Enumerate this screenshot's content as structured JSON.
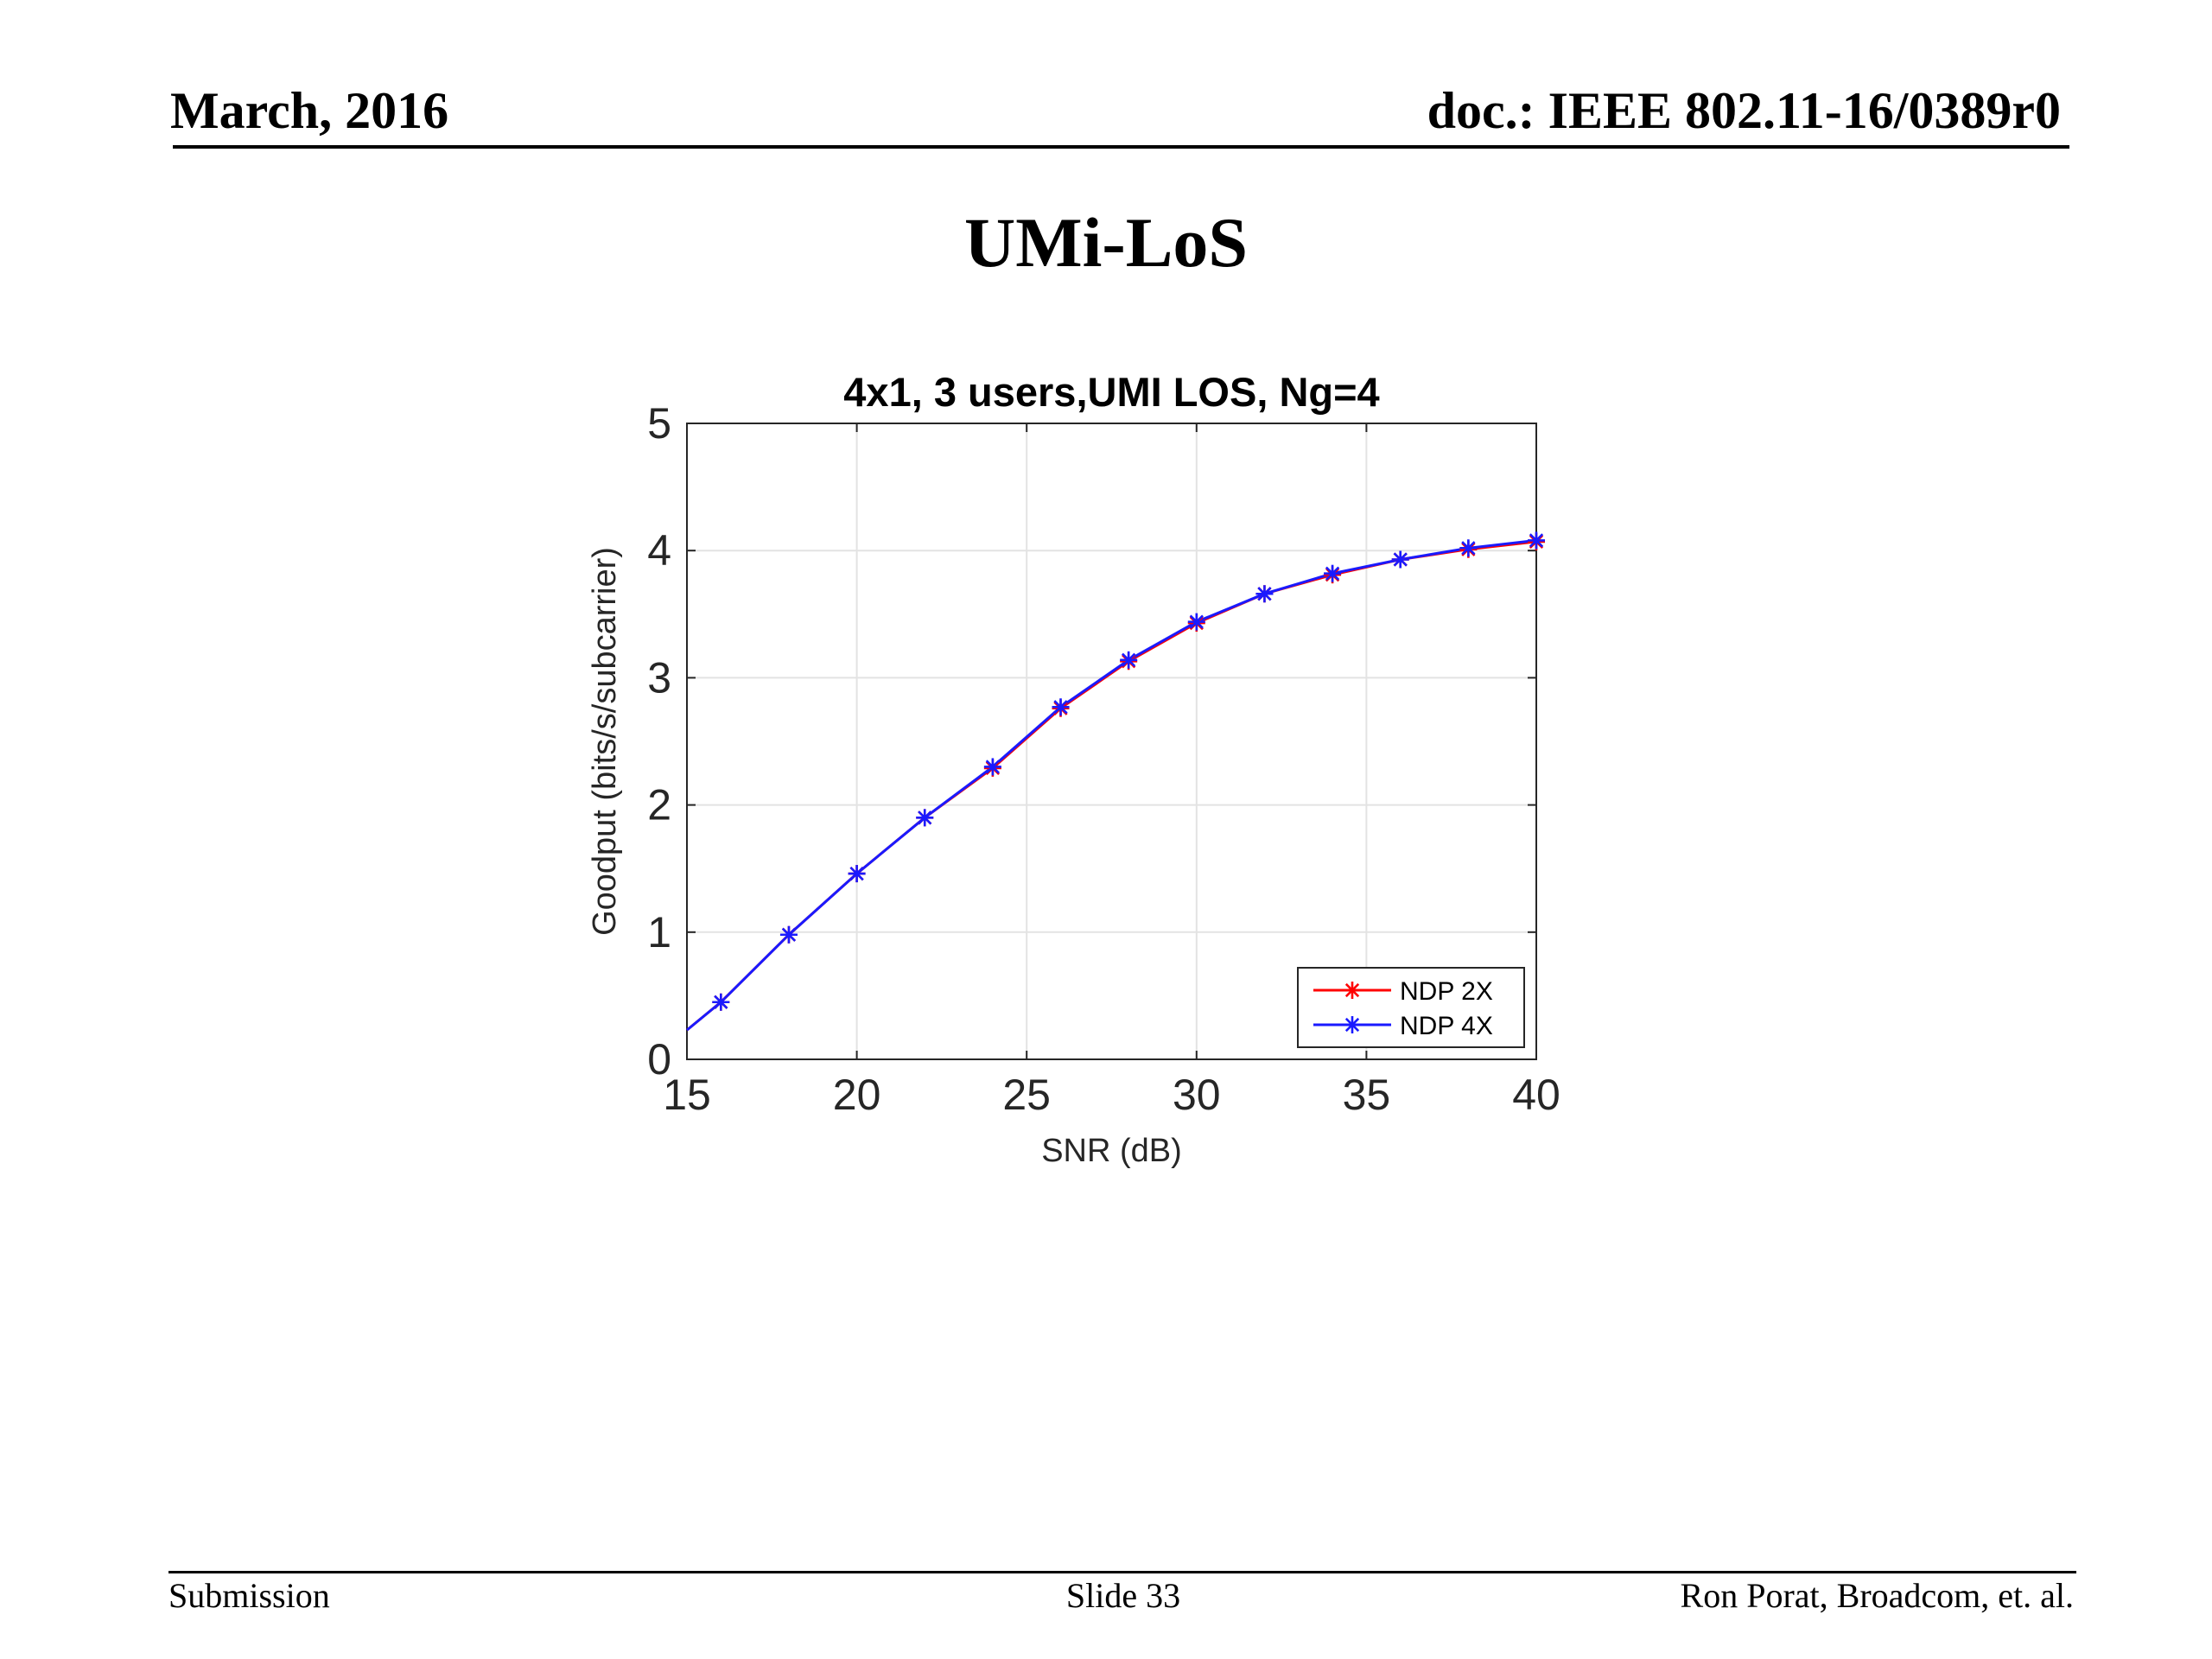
{
  "header": {
    "date": "March, 2016",
    "doc_id": "doc.: IEEE 802.11-16/0389r0"
  },
  "slide": {
    "title": "UMi-LoS"
  },
  "footer": {
    "left": "Submission",
    "center": "Slide 33",
    "right": "Ron Porat, Broadcom, et. al."
  },
  "chart_data": {
    "type": "line",
    "title": "4x1, 3 users,UMI LOS, Ng=4",
    "xlabel": "SNR (dB)",
    "ylabel": "Goodput (bits/s/subcarrier)",
    "xlim": [
      15,
      40
    ],
    "ylim": [
      0,
      5
    ],
    "xticks": [
      15,
      20,
      25,
      30,
      35,
      40
    ],
    "yticks": [
      0,
      1,
      2,
      3,
      4,
      5
    ],
    "grid": true,
    "legend_position": "bottom-right",
    "line_start": {
      "x": 15,
      "y": 0.23
    },
    "x": [
      16,
      18,
      20,
      22,
      24,
      26,
      28,
      30,
      32,
      34,
      36,
      38,
      40
    ],
    "series": [
      {
        "name": "NDP 2X",
        "color": "#ff0000",
        "marker": "asterisk",
        "values": [
          0.45,
          0.98,
          1.46,
          1.9,
          2.29,
          2.76,
          3.13,
          3.43,
          3.66,
          3.81,
          3.93,
          4.01,
          4.07
        ]
      },
      {
        "name": "NDP 4X",
        "color": "#1a1aff",
        "marker": "asterisk",
        "values": [
          0.45,
          0.98,
          1.46,
          1.9,
          2.3,
          2.77,
          3.14,
          3.44,
          3.66,
          3.82,
          3.93,
          4.02,
          4.08
        ]
      }
    ]
  }
}
